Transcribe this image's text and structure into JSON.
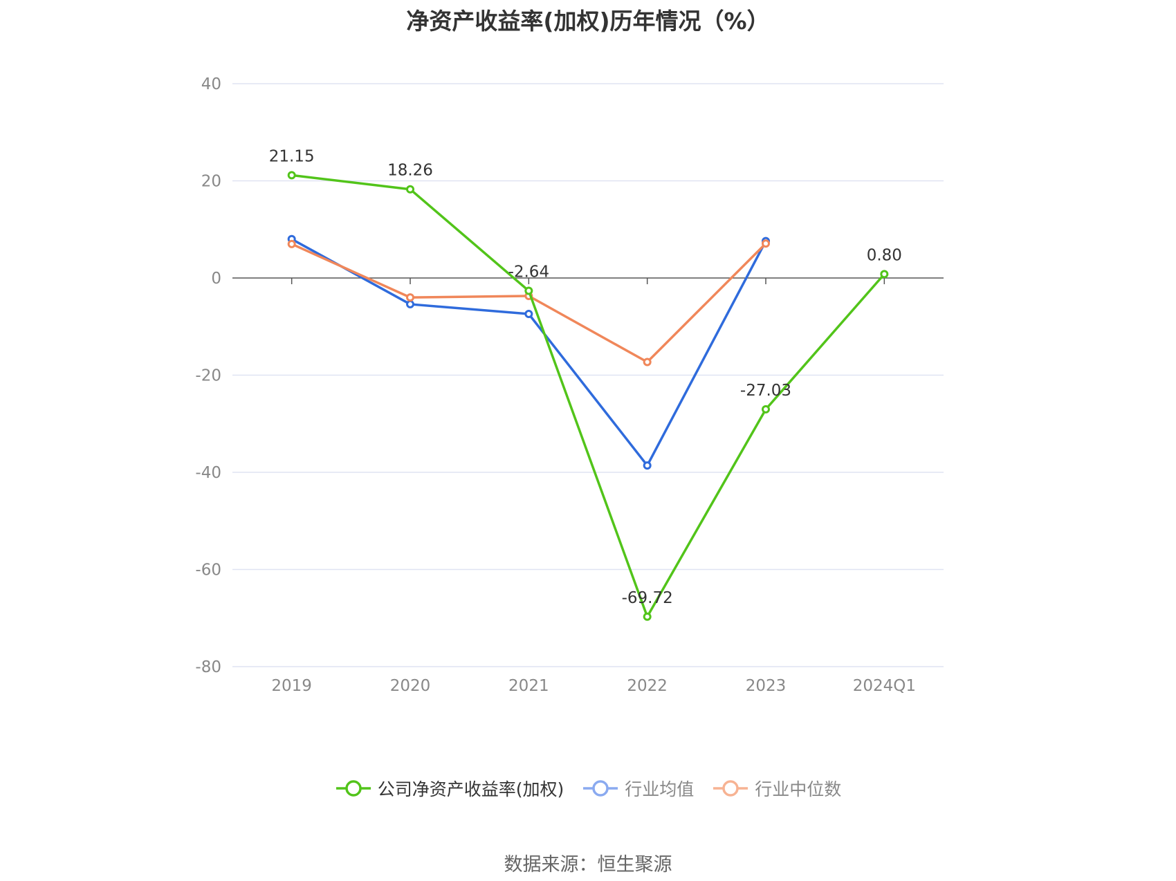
{
  "chart_data": {
    "type": "line",
    "title": "净资产收益率(加权)历年情况（%）",
    "categories": [
      "2019",
      "2020",
      "2021",
      "2022",
      "2023",
      "2024Q1"
    ],
    "ylim": [
      -80,
      40
    ],
    "yticks": [
      40,
      20,
      0,
      -20,
      -40,
      -60,
      -80
    ],
    "grid": true,
    "legend_position": "bottom",
    "series": [
      {
        "name": "公司净资产收益率(加权)",
        "color": "#52c41a",
        "values": [
          21.15,
          18.26,
          -2.64,
          -69.72,
          -27.03,
          0.8
        ],
        "labels": [
          "21.15",
          "18.26",
          "-2.64",
          "-69.72",
          "-27.03",
          "0.80"
        ],
        "show_labels": true
      },
      {
        "name": "行业均值",
        "color": "#2f6bdc",
        "legend_color": "#8aaaf0",
        "values": [
          8.0,
          -5.4,
          -7.4,
          -38.6,
          7.6,
          null
        ],
        "show_labels": false
      },
      {
        "name": "行业中位数",
        "color": "#f0875a",
        "legend_color": "#f7b393",
        "values": [
          7.0,
          -4.0,
          -3.7,
          -17.3,
          7.1,
          null
        ],
        "show_labels": false
      }
    ]
  },
  "source": "数据来源：恒生聚源"
}
